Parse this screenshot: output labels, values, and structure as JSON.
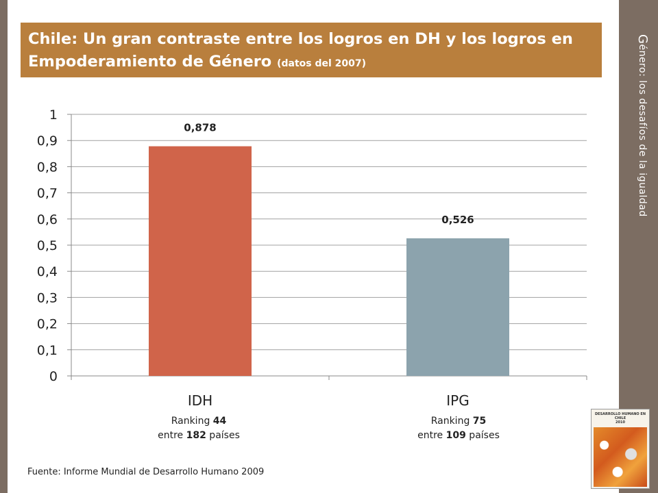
{
  "title": {
    "main": "Chile: Un gran contraste entre los logros en DH y los logros en Empoderamiento de Género",
    "note": "(datos del 2007)"
  },
  "side_title": {
    "cap": "G",
    "rest": "énero: los desafíos de la igualdad"
  },
  "colors": {
    "title_bar": "#b97f3d",
    "background": "#7c6d62",
    "bar_idh": "#d0644a",
    "bar_ipg": "#8ca3ad"
  },
  "chart_data": {
    "type": "bar",
    "categories": [
      "IDH",
      "IPG"
    ],
    "values": [
      0.878,
      0.526
    ],
    "data_labels": [
      "0,878",
      "0,526"
    ],
    "yticks": [
      "0",
      "0,1",
      "0,2",
      "0,3",
      "0,4",
      "0,5",
      "0,6",
      "0,7",
      "0,8",
      "0,9",
      "1"
    ],
    "ylim": [
      0,
      1
    ],
    "grid": true,
    "title": "",
    "xlabel": "",
    "ylabel": ""
  },
  "rankings": [
    {
      "prefix": "Ranking ",
      "rank": "44",
      "line2_prefix": "entre ",
      "total": "182",
      "line2_suffix": " países"
    },
    {
      "prefix": "Ranking ",
      "rank": "75",
      "line2_prefix": "entre ",
      "total": "109",
      "line2_suffix": " países"
    }
  ],
  "source": "Fuente: Informe Mundial de Desarrollo Humano 2009",
  "cover": {
    "title": "DESARROLLO HUMANO EN CHILE",
    "subtitle": "2010"
  }
}
